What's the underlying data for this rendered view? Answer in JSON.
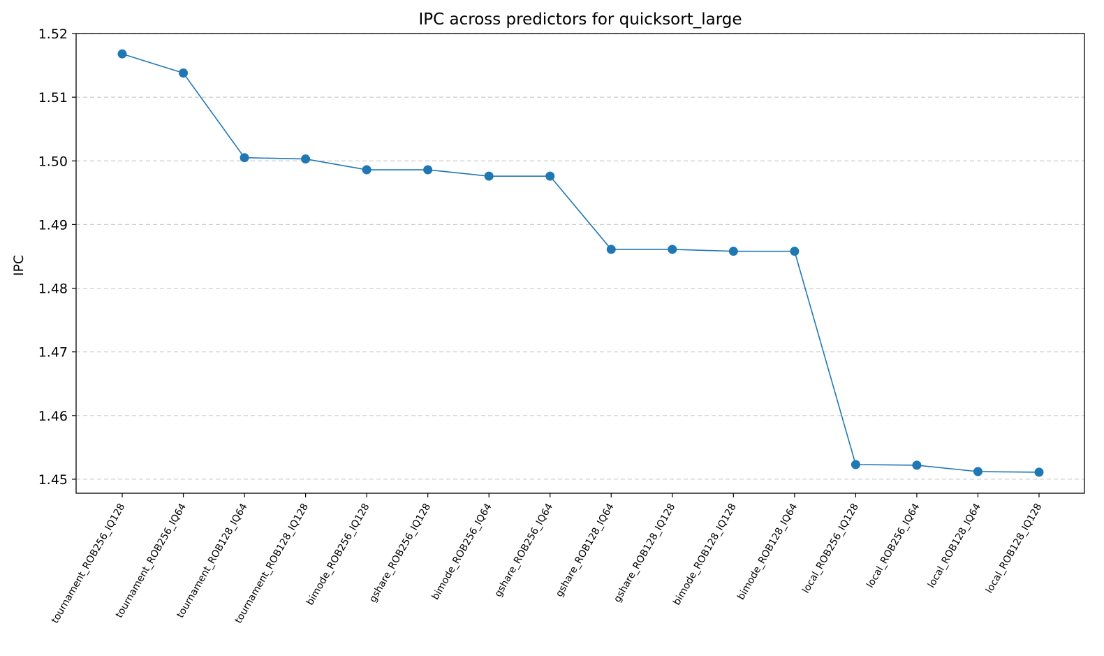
{
  "chart_data": {
    "type": "line",
    "title": "IPC across predictors for quicksort_large",
    "xlabel": "",
    "ylabel": "IPC",
    "categories": [
      "tournament_ROB256_IQ128",
      "tournament_ROB256_IQ64",
      "tournament_ROB128_IQ64",
      "tournament_ROB128_IQ128",
      "bimode_ROB256_IQ128",
      "gshare_ROB256_IQ128",
      "bimode_ROB256_IQ64",
      "gshare_ROB256_IQ64",
      "gshare_ROB128_IQ64",
      "gshare_ROB128_IQ128",
      "bimode_ROB128_IQ128",
      "bimode_ROB128_IQ64",
      "local_ROB256_IQ128",
      "local_ROB256_IQ64",
      "local_ROB128_IQ64",
      "local_ROB128_IQ128"
    ],
    "series": [
      {
        "values": [
          1.5168,
          1.5138,
          1.5005,
          1.5003,
          1.4986,
          1.4986,
          1.4976,
          1.4976,
          1.4861,
          1.4861,
          1.4858,
          1.4858,
          1.4523,
          1.4522,
          1.4512,
          1.4511
        ],
        "color": "#1f77b4"
      }
    ],
    "yticks": [
      "1.45",
      "1.46",
      "1.47",
      "1.48",
      "1.49",
      "1.50",
      "1.51",
      "1.52"
    ],
    "ylim": [
      1.4478,
      1.52
    ],
    "grid": "y-dashed",
    "legend": "none"
  }
}
